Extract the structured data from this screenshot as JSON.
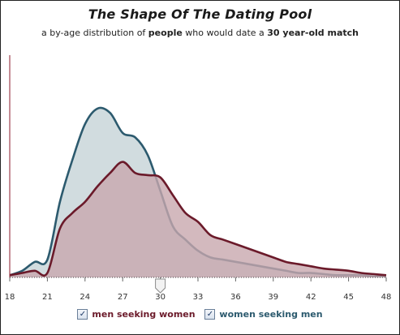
{
  "title": "The Shape Of The Dating Pool",
  "subtitle": {
    "part1": "a by-age distribution of ",
    "bold1": "people",
    "part2": " who would date a ",
    "bold2": "30 year-old match"
  },
  "slider": {
    "value": 30
  },
  "legend": [
    {
      "label": "men seeking women",
      "checked": true,
      "checkmark": "✓",
      "color": "#6b1a2a"
    },
    {
      "label": "women seeking men",
      "checked": true,
      "checkmark": "✓",
      "color": "#2c5a6e"
    }
  ],
  "chart_data": {
    "type": "area",
    "title": "The Shape Of The Dating Pool",
    "xlim": [
      18,
      48
    ],
    "ylim": [
      0,
      1
    ],
    "x_ticks": [
      18,
      21,
      24,
      27,
      30,
      33,
      36,
      39,
      42,
      45,
      48
    ],
    "grid": false,
    "legend_position": "bottom",
    "colors": {
      "men_fill": "#c8a8ae",
      "men_line": "#6b1a2a",
      "women_fill": "#cfdadd",
      "women_line": "#2c5a6e"
    },
    "x": [
      18,
      19,
      20,
      21,
      22,
      23,
      24,
      25,
      26,
      27,
      28,
      29,
      30,
      31,
      32,
      33,
      34,
      35,
      36,
      37,
      38,
      39,
      40,
      41,
      42,
      43,
      44,
      45,
      46,
      47,
      48
    ],
    "series": [
      {
        "name": "men seeking women",
        "values": [
          0.01,
          0.02,
          0.03,
          0.02,
          0.22,
          0.29,
          0.34,
          0.41,
          0.47,
          0.52,
          0.47,
          0.46,
          0.45,
          0.37,
          0.29,
          0.25,
          0.19,
          0.17,
          0.15,
          0.13,
          0.11,
          0.09,
          0.07,
          0.06,
          0.05,
          0.04,
          0.035,
          0.03,
          0.02,
          0.015,
          0.01
        ]
      },
      {
        "name": "women seeking men",
        "values": [
          0.01,
          0.03,
          0.07,
          0.08,
          0.34,
          0.53,
          0.69,
          0.76,
          0.74,
          0.65,
          0.63,
          0.55,
          0.39,
          0.23,
          0.17,
          0.12,
          0.09,
          0.08,
          0.07,
          0.06,
          0.05,
          0.04,
          0.03,
          0.02,
          0.02,
          0.015,
          0.01,
          0.01,
          0.01,
          0.005,
          0.005
        ]
      }
    ]
  }
}
